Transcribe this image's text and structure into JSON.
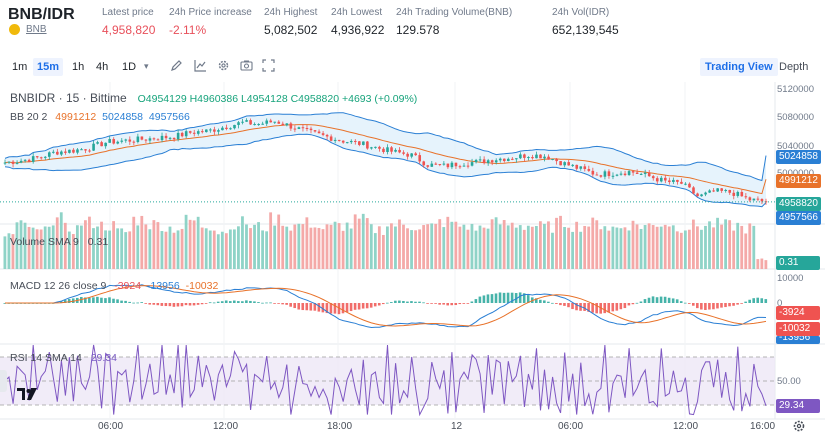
{
  "header": {
    "pair": "BNB/IDR",
    "base_asset": "BNB",
    "stats": [
      {
        "label": "Latest price",
        "value": "4,958,820",
        "tone": "red"
      },
      {
        "label": "24h Price increase",
        "value": "-2.11%",
        "tone": "red"
      },
      {
        "label": "24h Highest",
        "value": "5,082,502",
        "tone": "normal"
      },
      {
        "label": "24h Lowest",
        "value": "4,936,922",
        "tone": "normal"
      },
      {
        "label": "24h Trading Volume(BNB)",
        "value": "129.578",
        "tone": "normal"
      },
      {
        "label": "24h Vol(IDR)",
        "value": "652,139,545",
        "tone": "normal"
      }
    ]
  },
  "toolbar": {
    "intervals": [
      "1m",
      "15m",
      "1h",
      "4h",
      "1D"
    ],
    "active_interval": "15m",
    "icons": [
      "chevron-down-icon",
      "pencil-icon",
      "line-chart-icon",
      "settings-icon",
      "camera-icon",
      "expand-icon"
    ],
    "views": [
      "Trading View",
      "Depth"
    ],
    "active_view": "Trading View"
  },
  "price_pane": {
    "symbol_line": "BNBIDR · 15 · Bittime",
    "ohlc": "O4954129 H4960386 L4954128 C4958820 +4693 (+0.09%)",
    "bb_name": "BB 20 2",
    "bb_basis": "4991212",
    "bb_upper": "5024858",
    "bb_lower": "4957566",
    "axis_labels": [
      "5120000",
      "5080000",
      "5040000",
      "5000000"
    ],
    "tags": {
      "upper": "5024858",
      "basis": "4991212",
      "last": "4958820",
      "lower": "4957566"
    }
  },
  "volume_pane": {
    "legend_name": "Volume SMA 9",
    "legend_value": "0.31",
    "tag": "0.31"
  },
  "macd_pane": {
    "legend_name": "MACD 12 26 close 9",
    "hist": "-3924",
    "macd": "-13956",
    "signal": "-10032",
    "axis_labels": [
      "10000",
      "0"
    ],
    "tags": {
      "hist": "-3924",
      "signal": "-10032",
      "macd": "-13956"
    }
  },
  "rsi_pane": {
    "legend_name": "RSI 14 SMA 14",
    "legend_value": "29.34",
    "axis_labels": [
      "50.00"
    ],
    "tag": "29.34"
  },
  "time_axis": [
    "06:00",
    "12:00",
    "18:00",
    "12",
    "06:00",
    "12:00",
    "16:00"
  ],
  "colors": {
    "up": "#26a69a",
    "down": "#ef5350",
    "bb": "#2a7fd4",
    "basis": "#e8722a",
    "rsi": "#7e57c2",
    "accent": "#1e6fe8"
  },
  "chart_data": {
    "type": "candlestick",
    "close_path": [
      5015000,
      5018000,
      5022000,
      5030000,
      5032000,
      5036000,
      5044000,
      5046000,
      5048000,
      5050000,
      5052000,
      5058000,
      5060000,
      5066000,
      5072000,
      5070000,
      5074000,
      5066000,
      5058000,
      5052000,
      5046000,
      5042000,
      5036000,
      5030000,
      5026000,
      5012000,
      5010000,
      5014000,
      5016000,
      5020000,
      5022000,
      5026000,
      5024000,
      5014000,
      5006000,
      4998000,
      5000000,
      5002000,
      4996000,
      4988000,
      4985000,
      4966000,
      4974000,
      4972000,
      4962000,
      4958820
    ],
    "volume_pattern": [
      0.55,
      0.7,
      0.6,
      0.8,
      0.65,
      0.75,
      0.7,
      0.6,
      0.8,
      0.72,
      0.66,
      0.78,
      0.7,
      0.62,
      0.75,
      0.68,
      0.8,
      0.7,
      0.74,
      0.66,
      0.7,
      0.78,
      0.64,
      0.72,
      0.7,
      0.68,
      0.76,
      0.7,
      0.66,
      0.74,
      0.72,
      0.7,
      0.68,
      0.75,
      0.7,
      0.73,
      0.66,
      0.72,
      0.7,
      0.74,
      0.68,
      0.7,
      0.72,
      0.7,
      0.66,
      0.15
    ]
  }
}
